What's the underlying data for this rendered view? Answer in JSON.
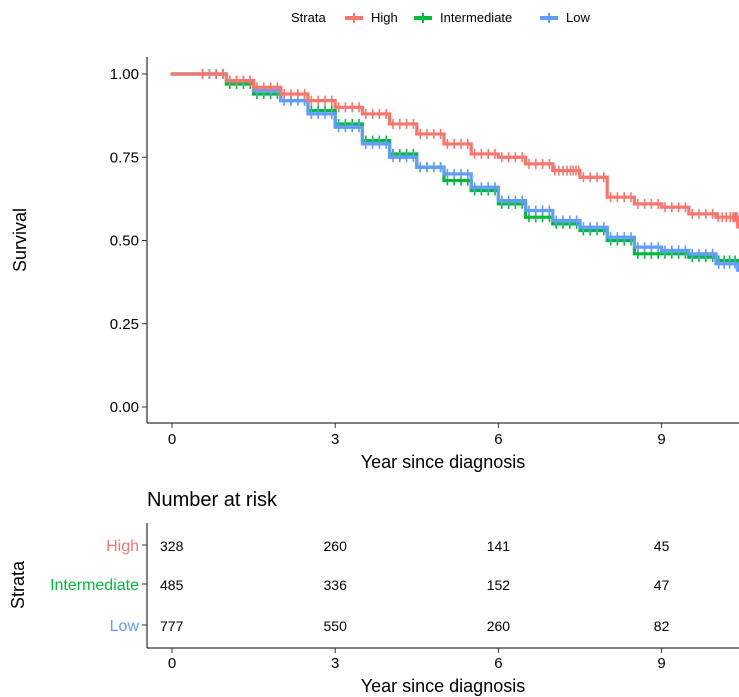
{
  "chart_data": [
    {
      "type": "line",
      "subtype": "kaplan-meier survival curve (step)",
      "legend": {
        "title": "Strata",
        "position": "top"
      },
      "xlabel": "Year since diagnosis",
      "ylabel": "Survival",
      "xlim": [
        0,
        10.4
      ],
      "ylim": [
        0,
        1
      ],
      "x_ticks": [
        0,
        3,
        6,
        9
      ],
      "y_ticks": [
        0,
        0.25,
        0.5,
        0.75,
        1
      ],
      "y_tick_labels": [
        "0.00",
        "0.25",
        "0.50",
        "0.75",
        "1.00"
      ],
      "grid": false,
      "censor_marks": true,
      "series": [
        {
          "name": "High",
          "color": "#F8766D",
          "x": [
            0,
            0.5,
            1.0,
            1.5,
            2.0,
            2.5,
            3.0,
            3.5,
            4.0,
            4.5,
            5.0,
            5.5,
            6.0,
            6.5,
            7.0,
            7.3,
            7.5,
            8.0,
            8.5,
            9.0,
            9.5,
            10.0,
            10.3,
            10.4
          ],
          "y": [
            1.0,
            1.0,
            0.98,
            0.96,
            0.94,
            0.92,
            0.9,
            0.88,
            0.85,
            0.82,
            0.79,
            0.76,
            0.75,
            0.73,
            0.71,
            0.71,
            0.69,
            0.63,
            0.61,
            0.6,
            0.58,
            0.57,
            0.57,
            0.54
          ]
        },
        {
          "name": "Intermediate",
          "color": "#00BA38",
          "x": [
            0,
            0.5,
            1.0,
            1.5,
            2.0,
            2.5,
            3.0,
            3.5,
            4.0,
            4.5,
            5.0,
            5.5,
            6.0,
            6.5,
            7.0,
            7.5,
            8.0,
            8.5,
            9.0,
            9.5,
            10.0,
            10.4
          ],
          "y": [
            1.0,
            1.0,
            0.97,
            0.94,
            0.92,
            0.89,
            0.85,
            0.8,
            0.76,
            0.72,
            0.68,
            0.65,
            0.61,
            0.57,
            0.55,
            0.53,
            0.5,
            0.46,
            0.46,
            0.45,
            0.44,
            0.43
          ]
        },
        {
          "name": "Low",
          "color": "#619CFF",
          "x": [
            0,
            0.5,
            1.0,
            1.5,
            2.0,
            2.5,
            3.0,
            3.5,
            4.0,
            4.5,
            5.0,
            5.5,
            6.0,
            6.5,
            7.0,
            7.5,
            8.0,
            8.5,
            9.0,
            9.5,
            10.0,
            10.4
          ],
          "y": [
            1.0,
            1.0,
            0.98,
            0.95,
            0.92,
            0.88,
            0.84,
            0.79,
            0.75,
            0.72,
            0.7,
            0.66,
            0.62,
            0.59,
            0.56,
            0.54,
            0.51,
            0.48,
            0.47,
            0.46,
            0.43,
            0.41
          ]
        }
      ]
    },
    {
      "type": "table",
      "title": "Number at risk",
      "row_axis_label": "Strata",
      "xlabel": "Year since diagnosis",
      "columns": [
        0,
        3,
        6,
        9
      ],
      "rows": [
        {
          "name": "High",
          "color": "#F8766D",
          "values": [
            328,
            260,
            141,
            45
          ]
        },
        {
          "name": "Intermediate",
          "color": "#00BA38",
          "values": [
            485,
            336,
            152,
            47
          ]
        },
        {
          "name": "Low",
          "color": "#619CFF",
          "values": [
            777,
            550,
            260,
            82
          ]
        }
      ]
    }
  ]
}
